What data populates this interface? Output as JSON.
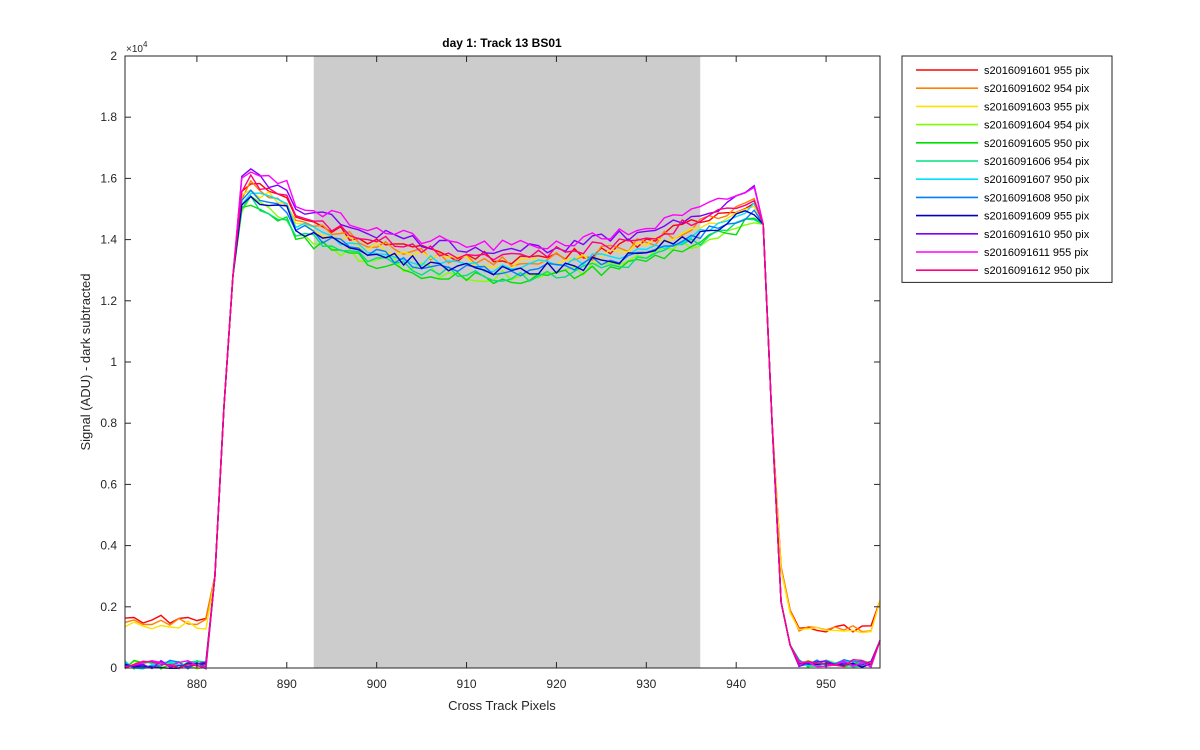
{
  "chart_data": {
    "type": "line",
    "title": "day 1: Track 13  BS01",
    "xlabel": "Cross Track Pixels",
    "ylabel": "Signal (ADU) - dark subtracted",
    "y_exponent_label": "×10",
    "y_exponent_power": "4",
    "xlim": [
      872,
      956
    ],
    "ylim": [
      0,
      2
    ],
    "x_ticks": [
      880,
      890,
      900,
      910,
      920,
      930,
      940,
      950
    ],
    "y_ticks": [
      0,
      0.2,
      0.4,
      0.6,
      0.8,
      1,
      1.2,
      1.4,
      1.6,
      1.8,
      2
    ],
    "y_tick_labels": [
      "0",
      "0.2",
      "0.4",
      "0.6",
      "0.8",
      "1",
      "1.2",
      "1.4",
      "1.6",
      "1.8",
      "2"
    ],
    "shaded_region": {
      "x_start": 893,
      "x_end": 936,
      "color": "#cccccc"
    },
    "grid": false,
    "legend_position": "outside-right",
    "series": [
      {
        "name": "s2016091601 955 pix",
        "color": "#ff0000",
        "base": 1.52,
        "left_level": 0.16,
        "right_level": 0.13
      },
      {
        "name": "s2016091602 954 pix",
        "color": "#ff8000",
        "base": 1.51,
        "left_level": 0.15,
        "right_level": 0.13
      },
      {
        "name": "s2016091603 955 pix",
        "color": "#ffe000",
        "base": 1.5,
        "left_level": 0.14,
        "right_level": 0.12
      },
      {
        "name": "s2016091604 954 pix",
        "color": "#80ff00",
        "base": 1.46,
        "left_level": 0.01,
        "right_level": 0.015
      },
      {
        "name": "s2016091605 950 pix",
        "color": "#00e000",
        "base": 1.45,
        "left_level": 0.01,
        "right_level": 0.015
      },
      {
        "name": "s2016091606 954 pix",
        "color": "#00e080",
        "base": 1.46,
        "left_level": 0.01,
        "right_level": 0.015
      },
      {
        "name": "s2016091607 950 pix",
        "color": "#00e0ff",
        "base": 1.49,
        "left_level": 0.01,
        "right_level": 0.015
      },
      {
        "name": "s2016091608 950 pix",
        "color": "#0080ff",
        "base": 1.48,
        "left_level": 0.01,
        "right_level": 0.015
      },
      {
        "name": "s2016091609 955 pix",
        "color": "#0000c0",
        "base": 1.48,
        "left_level": 0.01,
        "right_level": 0.015
      },
      {
        "name": "s2016091610 950 pix",
        "color": "#8000ff",
        "base": 1.55,
        "left_level": 0.01,
        "right_level": 0.015
      },
      {
        "name": "s2016091611 955 pix",
        "color": "#ff00ff",
        "base": 1.56,
        "left_level": 0.01,
        "right_level": 0.015
      },
      {
        "name": "s2016091612 950 pix",
        "color": "#ff0080",
        "base": 1.53,
        "left_level": 0.01,
        "right_level": 0.015
      }
    ]
  }
}
